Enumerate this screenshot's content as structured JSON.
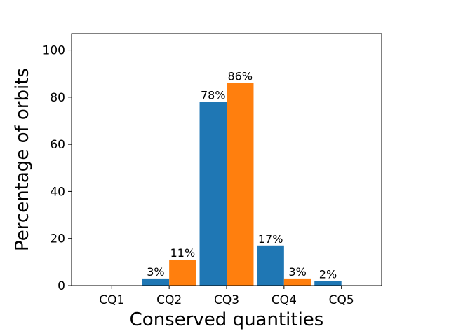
{
  "chart_data": {
    "type": "bar",
    "title": "",
    "xlabel": "Conserved quantities",
    "ylabel": "Percentage of orbits",
    "categories": [
      "CQ1",
      "CQ2",
      "CQ3",
      "CQ4",
      "CQ5"
    ],
    "series": [
      {
        "values": [
          0,
          3,
          78,
          17,
          2
        ],
        "labels": [
          "",
          "3%",
          "78%",
          "17%",
          "2%"
        ],
        "color": "#1f77b4"
      },
      {
        "values": [
          0,
          11,
          86,
          3,
          0
        ],
        "labels": [
          "",
          "11%",
          "86%",
          "3%",
          ""
        ],
        "color": "#ff7f0e"
      }
    ],
    "ylim": [
      0,
      107
    ],
    "yticks": [
      0,
      20,
      40,
      60,
      80,
      100
    ],
    "grid": false,
    "legend": "none"
  }
}
